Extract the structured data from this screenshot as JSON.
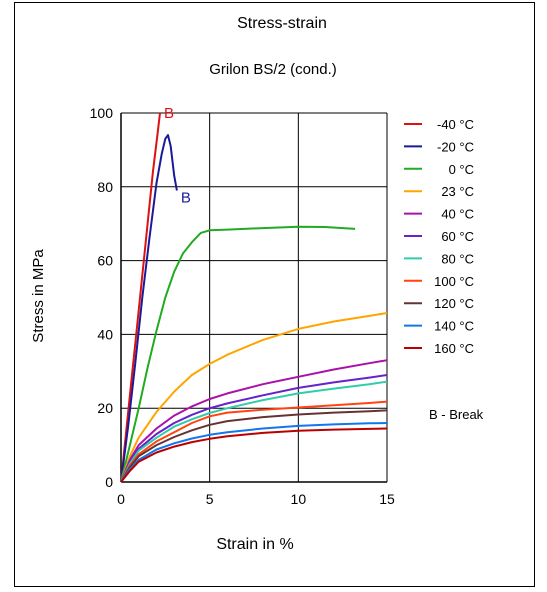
{
  "chart_data": {
    "type": "line",
    "title": "Stress-strain",
    "subtitle": "Grilon BS/2 (cond.)",
    "xlabel": "Strain in %",
    "ylabel": "Stress in MPa",
    "xlim": [
      0,
      15
    ],
    "ylim": [
      0,
      100
    ],
    "x_ticks": [
      "0",
      "5",
      "10",
      "15"
    ],
    "y_ticks": [
      "0",
      "20",
      "40",
      "60",
      "80",
      "100"
    ],
    "grid": true,
    "legend_position": "right",
    "legend_note": "B - Break",
    "series": [
      {
        "name": "-40 °C",
        "color": "#dd1111",
        "break_label": "B",
        "points": [
          [
            0,
            0
          ],
          [
            0.3,
            14
          ],
          [
            0.6,
            28
          ],
          [
            0.9,
            42
          ],
          [
            1.2,
            56
          ],
          [
            1.5,
            70
          ],
          [
            1.8,
            84
          ],
          [
            2.05,
            94
          ],
          [
            2.2,
            100
          ]
        ]
      },
      {
        "name": "-20 °C",
        "color": "#1a1a99",
        "break_label": "B",
        "points": [
          [
            0,
            0
          ],
          [
            0.4,
            15
          ],
          [
            0.8,
            32
          ],
          [
            1.2,
            50
          ],
          [
            1.6,
            66
          ],
          [
            2.0,
            81
          ],
          [
            2.3,
            89
          ],
          [
            2.5,
            93
          ],
          [
            2.65,
            94
          ],
          [
            2.8,
            91
          ],
          [
            3.0,
            83
          ],
          [
            3.15,
            79
          ]
        ]
      },
      {
        "name": "0 °C",
        "color": "#22aa22",
        "points": [
          [
            0,
            0
          ],
          [
            0.5,
            10
          ],
          [
            1,
            20
          ],
          [
            1.5,
            31
          ],
          [
            2,
            41
          ],
          [
            2.5,
            50
          ],
          [
            3,
            57
          ],
          [
            3.5,
            62
          ],
          [
            4,
            65
          ],
          [
            4.5,
            67.5
          ],
          [
            5,
            68.2
          ],
          [
            6,
            68.4
          ],
          [
            8,
            68.8
          ],
          [
            10,
            69.2
          ],
          [
            11.5,
            69.1
          ],
          [
            13.2,
            68.6
          ]
        ]
      },
      {
        "name": "23 °C",
        "color": "#ffa500",
        "points": [
          [
            0,
            0
          ],
          [
            0.5,
            7
          ],
          [
            1,
            12
          ],
          [
            2,
            19
          ],
          [
            3,
            24.5
          ],
          [
            4,
            29
          ],
          [
            5,
            32
          ],
          [
            6,
            34.5
          ],
          [
            8,
            38.5
          ],
          [
            10,
            41.5
          ],
          [
            12,
            43.5
          ],
          [
            14,
            45
          ],
          [
            15,
            45.8
          ]
        ]
      },
      {
        "name": "40 °C",
        "color": "#aa11aa",
        "points": [
          [
            0,
            0
          ],
          [
            0.5,
            6
          ],
          [
            1,
            10
          ],
          [
            2,
            14.5
          ],
          [
            3,
            18
          ],
          [
            4,
            20.5
          ],
          [
            5,
            22.5
          ],
          [
            6,
            24
          ],
          [
            8,
            26.5
          ],
          [
            10,
            28.5
          ],
          [
            12,
            30.5
          ],
          [
            14,
            32.2
          ],
          [
            15,
            33
          ]
        ]
      },
      {
        "name": "60 °C",
        "color": "#6622cc",
        "points": [
          [
            0,
            0
          ],
          [
            0.5,
            5.5
          ],
          [
            1,
            9
          ],
          [
            2,
            13
          ],
          [
            3,
            16
          ],
          [
            4,
            18.2
          ],
          [
            5,
            20
          ],
          [
            6,
            21.3
          ],
          [
            8,
            23.5
          ],
          [
            10,
            25.5
          ],
          [
            12,
            27
          ],
          [
            14,
            28.3
          ],
          [
            15,
            29
          ]
        ]
      },
      {
        "name": "80 °C",
        "color": "#33ccaa",
        "points": [
          [
            0,
            0
          ],
          [
            0.5,
            5
          ],
          [
            1,
            8.5
          ],
          [
            2,
            12
          ],
          [
            3,
            15
          ],
          [
            4,
            17
          ],
          [
            5,
            18.7
          ],
          [
            6,
            20
          ],
          [
            8,
            22.2
          ],
          [
            10,
            24
          ],
          [
            12,
            25.3
          ],
          [
            14,
            26.5
          ],
          [
            15,
            27.2
          ]
        ]
      },
      {
        "name": "100 °C",
        "color": "#ff4411",
        "points": [
          [
            0,
            0
          ],
          [
            0.5,
            4.5
          ],
          [
            1,
            7.5
          ],
          [
            2,
            11
          ],
          [
            3,
            13.5
          ],
          [
            4,
            16
          ],
          [
            5,
            17.8
          ],
          [
            6,
            18.8
          ],
          [
            8,
            19.6
          ],
          [
            10,
            20.2
          ],
          [
            12,
            20.8
          ],
          [
            14,
            21.4
          ],
          [
            15,
            21.8
          ]
        ]
      },
      {
        "name": "120 °C",
        "color": "#663333",
        "points": [
          [
            0,
            0
          ],
          [
            0.5,
            4
          ],
          [
            1,
            7
          ],
          [
            2,
            10
          ],
          [
            3,
            12.2
          ],
          [
            4,
            14
          ],
          [
            5,
            15.5
          ],
          [
            6,
            16.5
          ],
          [
            8,
            17.6
          ],
          [
            10,
            18.3
          ],
          [
            12,
            18.8
          ],
          [
            14,
            19.2
          ],
          [
            15,
            19.4
          ]
        ]
      },
      {
        "name": "140 °C",
        "color": "#1177ee",
        "points": [
          [
            0,
            0
          ],
          [
            0.5,
            3.5
          ],
          [
            1,
            6
          ],
          [
            2,
            8.8
          ],
          [
            3,
            10.5
          ],
          [
            4,
            11.8
          ],
          [
            5,
            12.8
          ],
          [
            6,
            13.5
          ],
          [
            8,
            14.5
          ],
          [
            10,
            15.2
          ],
          [
            12,
            15.6
          ],
          [
            14,
            15.9
          ],
          [
            15,
            16
          ]
        ]
      },
      {
        "name": "160 °C",
        "color": "#bb0000",
        "points": [
          [
            0,
            0
          ],
          [
            0.5,
            3
          ],
          [
            1,
            5.5
          ],
          [
            2,
            8
          ],
          [
            3,
            9.6
          ],
          [
            4,
            10.8
          ],
          [
            5,
            11.7
          ],
          [
            6,
            12.4
          ],
          [
            8,
            13.3
          ],
          [
            10,
            13.9
          ],
          [
            12,
            14.2
          ],
          [
            14,
            14.4
          ],
          [
            15,
            14.5
          ]
        ]
      }
    ]
  }
}
